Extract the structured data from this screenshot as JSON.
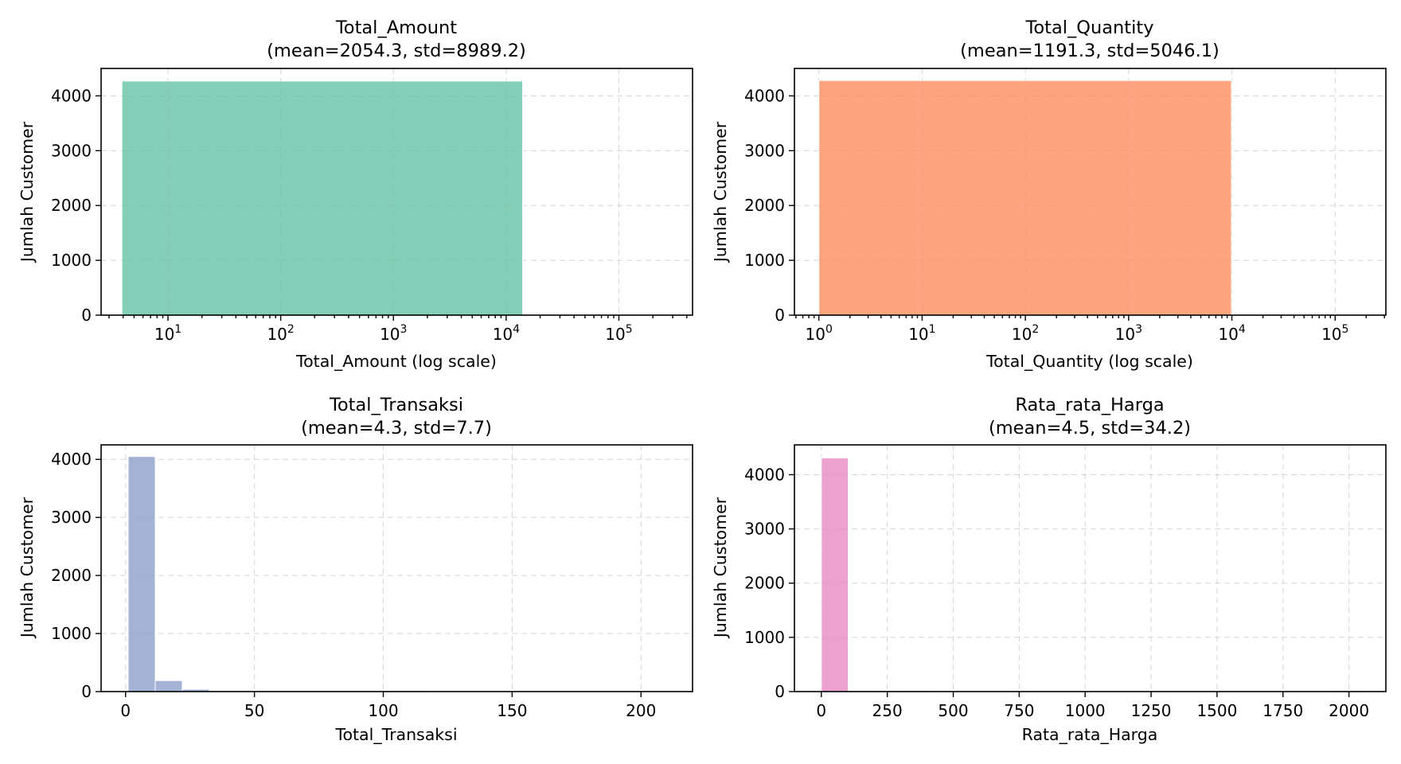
{
  "chart_data": [
    {
      "type": "bar",
      "title": "Total_Amount",
      "subtitle": "(mean=2054.3, std=8989.2)",
      "xlabel": "Total_Amount (log scale)",
      "ylabel": "Jumlah Customer",
      "xscale": "log",
      "xlim": [
        2.55,
        450000
      ],
      "ylim": [
        0,
        4500
      ],
      "x_ticks": [
        {
          "base": "10",
          "exp": "1",
          "value": 10
        },
        {
          "base": "10",
          "exp": "2",
          "value": 100
        },
        {
          "base": "10",
          "exp": "3",
          "value": 1000
        },
        {
          "base": "10",
          "exp": "4",
          "value": 10000
        },
        {
          "base": "10",
          "exp": "5",
          "value": 100000
        }
      ],
      "y_ticks": [
        "0",
        "1000",
        "2000",
        "3000",
        "4000"
      ],
      "bins": [
        {
          "x0": 3.9,
          "x1": 14000,
          "count": 4270
        }
      ],
      "color": "#66c2a5",
      "grid": true
    },
    {
      "type": "bar",
      "title": "Total_Quantity",
      "subtitle": "(mean=1191.3, std=5046.1)",
      "xlabel": "Total_Quantity (log scale)",
      "ylabel": "Jumlah Customer",
      "xscale": "log",
      "xlim": [
        0.58,
        310000
      ],
      "ylim": [
        0,
        4500
      ],
      "x_ticks": [
        {
          "base": "10",
          "exp": "0",
          "value": 1
        },
        {
          "base": "10",
          "exp": "1",
          "value": 10
        },
        {
          "base": "10",
          "exp": "2",
          "value": 100
        },
        {
          "base": "10",
          "exp": "3",
          "value": 1000
        },
        {
          "base": "10",
          "exp": "4",
          "value": 10000
        },
        {
          "base": "10",
          "exp": "5",
          "value": 100000
        }
      ],
      "y_ticks": [
        "0",
        "1000",
        "2000",
        "3000",
        "4000"
      ],
      "bins": [
        {
          "x0": 1,
          "x1": 9900,
          "count": 4280
        }
      ],
      "color": "#fc8d62",
      "grid": true
    },
    {
      "type": "bar",
      "title": "Total_Transaksi",
      "subtitle": "(mean=4.3, std=7.7)",
      "xlabel": "Total_Transaksi",
      "ylabel": "Jumlah Customer",
      "xscale": "linear",
      "xlim": [
        -9.5,
        220
      ],
      "ylim": [
        0,
        4250
      ],
      "x_ticks": [
        "0",
        "50",
        "100",
        "150",
        "200"
      ],
      "y_ticks": [
        "0",
        "1000",
        "2000",
        "3000",
        "4000"
      ],
      "bin_edges": [
        1,
        11.5,
        22,
        32.5,
        43,
        53.5,
        64,
        74.5,
        85,
        95.5,
        106,
        116.5,
        127,
        137.5,
        148,
        158.5,
        169,
        179.5,
        190,
        200.5,
        211
      ],
      "counts": [
        4050,
        190,
        40,
        8,
        6,
        3,
        2,
        1,
        1,
        1,
        1,
        0,
        0,
        0,
        0,
        0,
        0,
        0,
        0,
        0
      ],
      "color": "#8da0cb",
      "grid": true
    },
    {
      "type": "bar",
      "title": "Rata_rata_Harga",
      "subtitle": "(mean=4.5, std=34.2)",
      "xlabel": "Rata_rata_Harga",
      "ylabel": "Jumlah Customer",
      "xscale": "linear",
      "xlim": [
        -102,
        2140
      ],
      "ylim": [
        0,
        4550
      ],
      "x_ticks": [
        "0",
        "250",
        "500",
        "750",
        "1000",
        "1250",
        "1500",
        "1750",
        "2000"
      ],
      "y_ticks": [
        "0",
        "1000",
        "2000",
        "3000",
        "4000"
      ],
      "bin_edges": [
        0,
        101.9,
        203.8,
        305.7,
        407.6,
        509.5,
        611.4,
        713.3,
        815.2,
        917.1,
        1019,
        1120.9,
        1222.8,
        1324.7,
        1426.6,
        1528.5,
        1630.4,
        1732.3,
        1834.2,
        1936.1,
        2038
      ],
      "counts": [
        4310,
        3,
        1,
        1,
        0,
        0,
        0,
        0,
        0,
        0,
        0,
        0,
        0,
        0,
        0,
        0,
        0,
        0,
        0,
        1
      ],
      "color": "#e78ac3",
      "grid": true
    }
  ]
}
